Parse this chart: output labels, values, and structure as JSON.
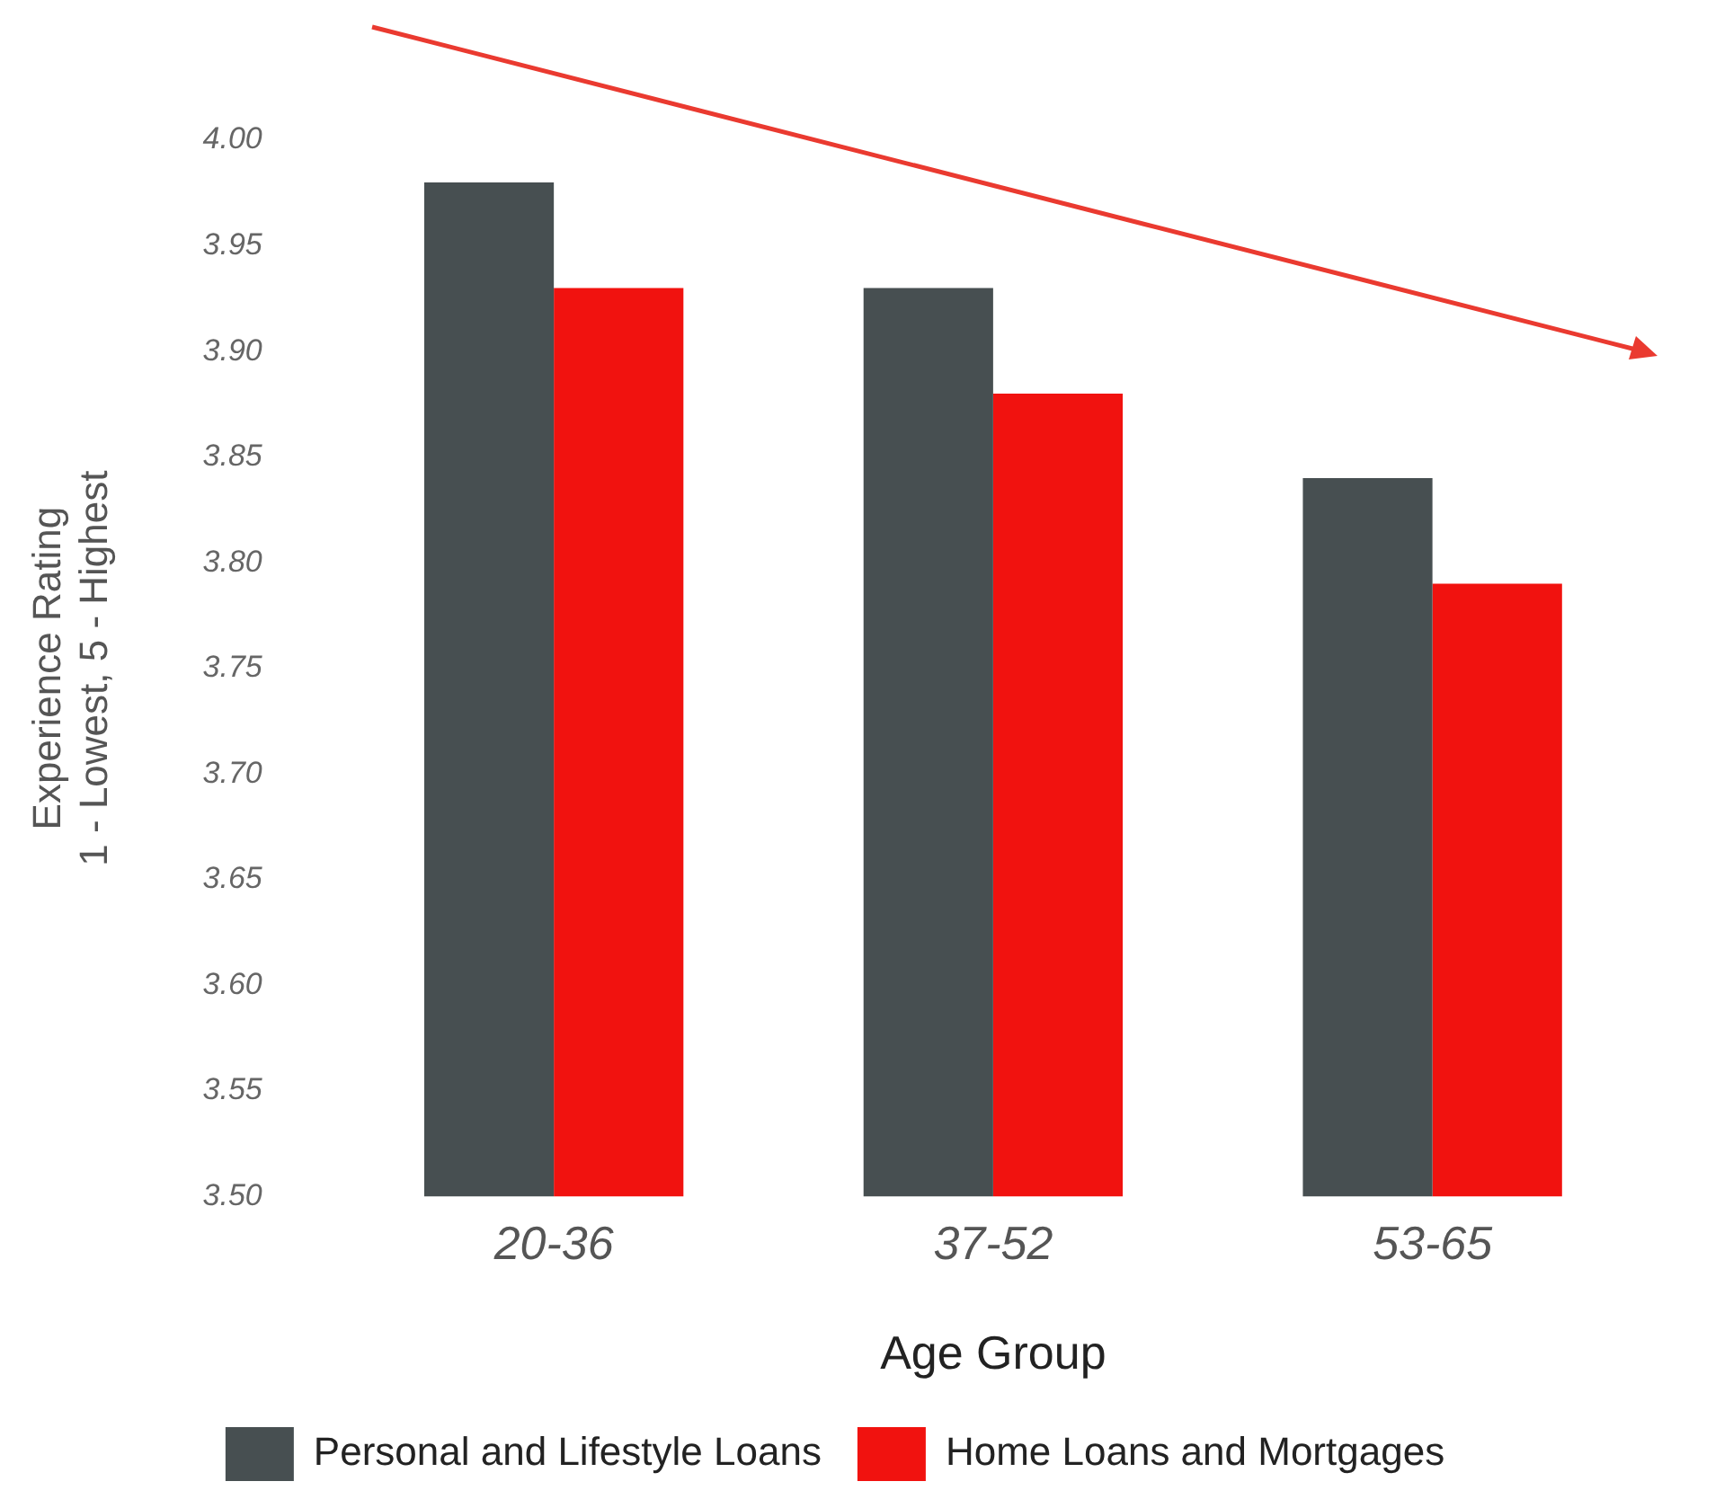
{
  "chart_data": {
    "type": "bar",
    "xlabel": "Age Group",
    "ylabel": "Experience Rating\n1 - Lowest, 5 - Highest",
    "categories": [
      "20-36",
      "37-52",
      "53-65"
    ],
    "series": [
      {
        "name": "Personal and Lifestyle Loans",
        "color": "#474f51",
        "values": [
          3.98,
          3.93,
          3.84
        ]
      },
      {
        "name": "Home Loans and Mortgages",
        "color": "#f1120f",
        "values": [
          3.93,
          3.88,
          3.79
        ]
      }
    ],
    "ylim": [
      3.5,
      4.0
    ],
    "yticks": [
      {
        "value": 3.5,
        "label": "3.50"
      },
      3.55,
      {
        "value": 3.6,
        "label": "3.60"
      },
      3.65,
      {
        "value": 3.7,
        "label": "3.70"
      },
      3.75,
      {
        "value": 3.8,
        "label": "3.80"
      },
      3.85,
      {
        "value": 3.9,
        "label": "3.90"
      },
      3.95,
      {
        "value": 4.0,
        "label": "4.00"
      }
    ],
    "grid": false,
    "legend": "bottom"
  }
}
